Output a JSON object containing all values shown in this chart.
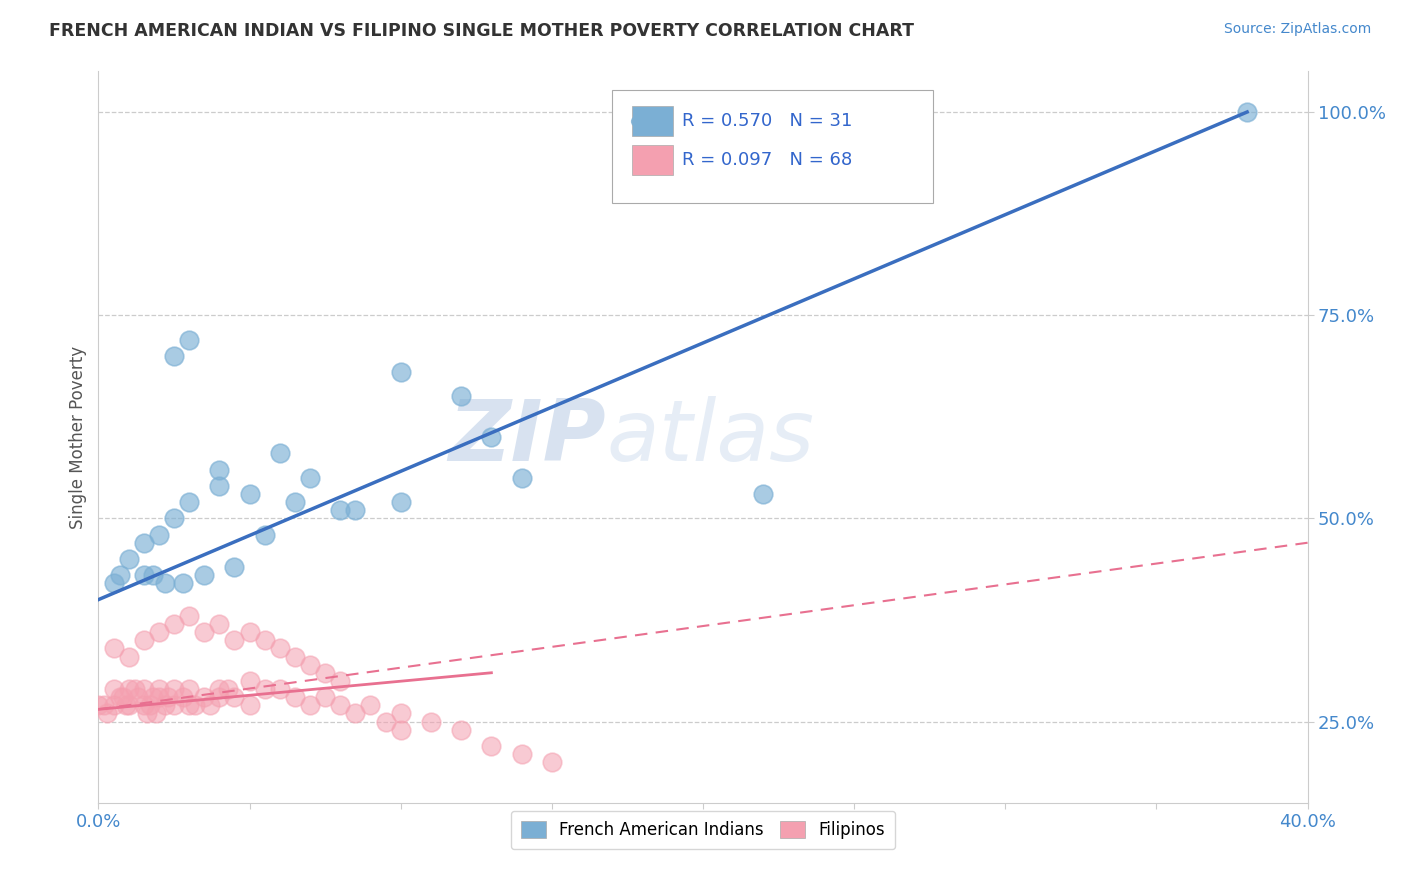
{
  "title": "FRENCH AMERICAN INDIAN VS FILIPINO SINGLE MOTHER POVERTY CORRELATION CHART",
  "source": "Source: ZipAtlas.com",
  "ylabel_label": "Single Mother Poverty",
  "xlim": [
    0.0,
    0.4
  ],
  "ylim": [
    0.15,
    1.05
  ],
  "xticks": [
    0.0,
    0.05,
    0.1,
    0.15,
    0.2,
    0.25,
    0.3,
    0.35,
    0.4
  ],
  "xticklabels": [
    "0.0%",
    "",
    "",
    "",
    "",
    "",
    "",
    "",
    "40.0%"
  ],
  "ytick_positions": [
    0.25,
    0.5,
    0.75,
    1.0
  ],
  "yticklabels": [
    "25.0%",
    "50.0%",
    "75.0%",
    "100.0%"
  ],
  "blue_color": "#7BAFD4",
  "pink_color": "#F4A0B0",
  "blue_line_color": "#3A6EBF",
  "pink_line_color": "#E87090",
  "watermark_zip": "ZIP",
  "watermark_atlas": "atlas",
  "blue_scatter_x": [
    0.025,
    0.03,
    0.005,
    0.007,
    0.01,
    0.015,
    0.02,
    0.025,
    0.03,
    0.04,
    0.04,
    0.05,
    0.06,
    0.07,
    0.085,
    0.1,
    0.13,
    0.14,
    0.22,
    0.38,
    0.12,
    0.1,
    0.065,
    0.055,
    0.045,
    0.035,
    0.028,
    0.022,
    0.018,
    0.015,
    0.08
  ],
  "blue_scatter_y": [
    0.7,
    0.72,
    0.42,
    0.43,
    0.45,
    0.47,
    0.48,
    0.5,
    0.52,
    0.54,
    0.56,
    0.53,
    0.58,
    0.55,
    0.51,
    0.52,
    0.6,
    0.55,
    0.53,
    1.0,
    0.65,
    0.68,
    0.52,
    0.48,
    0.44,
    0.43,
    0.42,
    0.42,
    0.43,
    0.43,
    0.51
  ],
  "pink_scatter_x": [
    0.0,
    0.002,
    0.003,
    0.005,
    0.005,
    0.007,
    0.008,
    0.009,
    0.01,
    0.01,
    0.012,
    0.013,
    0.015,
    0.015,
    0.016,
    0.017,
    0.018,
    0.019,
    0.02,
    0.02,
    0.022,
    0.023,
    0.025,
    0.025,
    0.028,
    0.03,
    0.03,
    0.032,
    0.035,
    0.037,
    0.04,
    0.04,
    0.043,
    0.045,
    0.05,
    0.05,
    0.055,
    0.06,
    0.065,
    0.07,
    0.075,
    0.08,
    0.085,
    0.09,
    0.095,
    0.1,
    0.1,
    0.11,
    0.12,
    0.13,
    0.14,
    0.15,
    0.005,
    0.01,
    0.015,
    0.02,
    0.025,
    0.03,
    0.035,
    0.04,
    0.045,
    0.05,
    0.055,
    0.06,
    0.065,
    0.07,
    0.075,
    0.08
  ],
  "pink_scatter_y": [
    0.27,
    0.27,
    0.26,
    0.27,
    0.29,
    0.28,
    0.28,
    0.27,
    0.27,
    0.29,
    0.29,
    0.28,
    0.29,
    0.27,
    0.26,
    0.27,
    0.28,
    0.26,
    0.28,
    0.29,
    0.27,
    0.28,
    0.27,
    0.29,
    0.28,
    0.27,
    0.29,
    0.27,
    0.28,
    0.27,
    0.29,
    0.28,
    0.29,
    0.28,
    0.3,
    0.27,
    0.29,
    0.29,
    0.28,
    0.27,
    0.28,
    0.27,
    0.26,
    0.27,
    0.25,
    0.24,
    0.26,
    0.25,
    0.24,
    0.22,
    0.21,
    0.2,
    0.34,
    0.33,
    0.35,
    0.36,
    0.37,
    0.38,
    0.36,
    0.37,
    0.35,
    0.36,
    0.35,
    0.34,
    0.33,
    0.32,
    0.31,
    0.3
  ],
  "blue_line_x": [
    0.0,
    0.38
  ],
  "blue_line_y": [
    0.4,
    1.0
  ],
  "pink_solid_line_x": [
    0.0,
    0.13
  ],
  "pink_solid_line_y": [
    0.265,
    0.31
  ],
  "pink_dash_line_x": [
    0.0,
    0.4
  ],
  "pink_dash_line_y": [
    0.265,
    0.47
  ]
}
